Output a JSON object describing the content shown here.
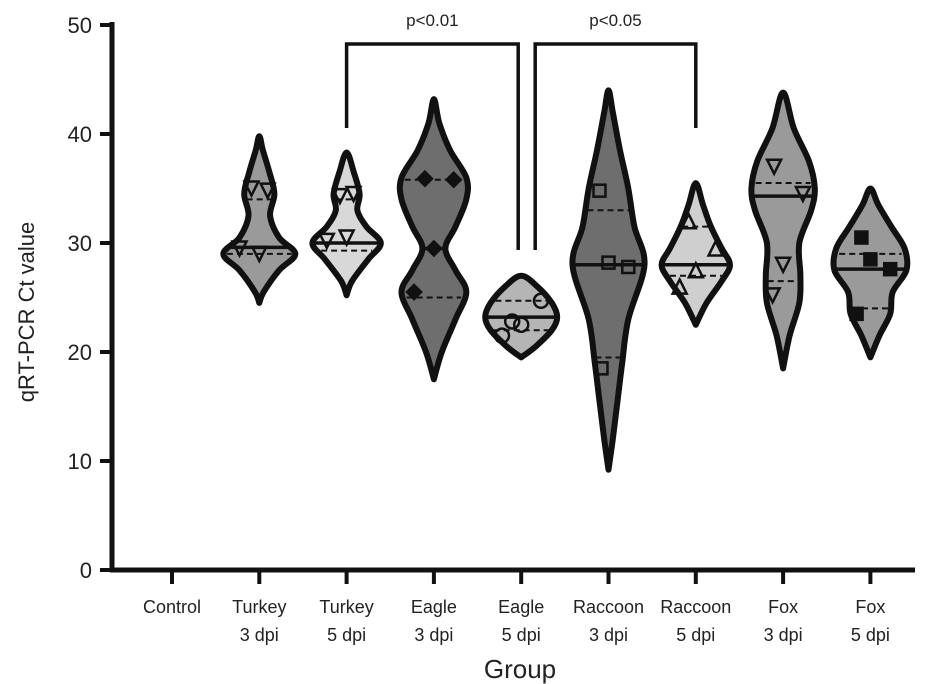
{
  "chart_data": {
    "type": "violin",
    "xlabel": "Group",
    "ylabel": "qRT-PCR Ct value",
    "ylim": [
      0,
      50
    ],
    "yticks": [
      0,
      10,
      20,
      30,
      40,
      50
    ],
    "categories": [
      {
        "line1": "Control",
        "line2": ""
      },
      {
        "line1": "Turkey",
        "line2": "3 dpi"
      },
      {
        "line1": "Turkey",
        "line2": "5 dpi"
      },
      {
        "line1": "Eagle",
        "line2": "3 dpi"
      },
      {
        "line1": "Eagle",
        "line2": "5 dpi"
      },
      {
        "line1": "Raccoon",
        "line2": "3 dpi"
      },
      {
        "line1": "Raccoon",
        "line2": "5 dpi"
      },
      {
        "line1": "Fox",
        "line2": "3 dpi"
      },
      {
        "line1": "Fox",
        "line2": "5 dpi"
      }
    ],
    "groups": [
      {
        "category_index": 0,
        "fill": null,
        "points": [],
        "median": null,
        "q1": null,
        "q3": null,
        "marker": null,
        "profile": []
      },
      {
        "category_index": 1,
        "fill": "#9a9a9a",
        "marker": "triangle-down",
        "median": 29.6,
        "q1": 29.0,
        "q3": 34.0,
        "points": [
          29.5,
          29.0,
          34.8,
          35.0
        ],
        "profile": [
          [
            24.5,
            0.0
          ],
          [
            25.5,
            0.12
          ],
          [
            27.5,
            0.55
          ],
          [
            29.0,
            1.0
          ],
          [
            30.5,
            0.55
          ],
          [
            32.5,
            0.3
          ],
          [
            34.5,
            0.42
          ],
          [
            36.5,
            0.28
          ],
          [
            38.5,
            0.1
          ],
          [
            39.8,
            0.0
          ]
        ]
      },
      {
        "category_index": 2,
        "fill": "#d8d8d8",
        "marker": "triangle-down",
        "median": 30.0,
        "q1": 29.3,
        "q3": 34.0,
        "points": [
          30.2,
          30.5,
          34.5,
          34.3
        ],
        "profile": [
          [
            25.2,
            0.0
          ],
          [
            26.5,
            0.15
          ],
          [
            28.5,
            0.6
          ],
          [
            30.0,
            0.95
          ],
          [
            31.5,
            0.55
          ],
          [
            33.0,
            0.3
          ],
          [
            34.5,
            0.36
          ],
          [
            36.5,
            0.2
          ],
          [
            38.3,
            0.0
          ]
        ]
      },
      {
        "category_index": 3,
        "fill": "#6e6e6e",
        "marker": "diamond",
        "median": 29.5,
        "q1": 25.0,
        "q3": 35.8,
        "points": [
          25.5,
          29.5,
          35.8,
          35.9
        ],
        "profile": [
          [
            17.5,
            0.0
          ],
          [
            20.0,
            0.22
          ],
          [
            23.0,
            0.6
          ],
          [
            25.5,
            0.9
          ],
          [
            27.5,
            0.6
          ],
          [
            29.5,
            0.32
          ],
          [
            31.5,
            0.6
          ],
          [
            34.0,
            0.9
          ],
          [
            36.0,
            0.9
          ],
          [
            38.5,
            0.45
          ],
          [
            41.0,
            0.15
          ],
          [
            43.2,
            0.0
          ]
        ]
      },
      {
        "category_index": 4,
        "fill": "#b5b5b5",
        "marker": "circle",
        "median": 23.2,
        "q1": 22.0,
        "q3": 24.7,
        "points": [
          21.5,
          22.5,
          24.7,
          22.8
        ],
        "profile": [
          [
            19.5,
            0.0
          ],
          [
            20.5,
            0.4
          ],
          [
            22.0,
            0.85
          ],
          [
            23.2,
            1.0
          ],
          [
            24.5,
            0.85
          ],
          [
            26.0,
            0.45
          ],
          [
            27.0,
            0.0
          ]
        ]
      },
      {
        "category_index": 5,
        "fill": "#6e6e6e",
        "marker": "square",
        "median": 28.0,
        "q1": 19.5,
        "q3": 33.0,
        "points": [
          18.5,
          28.2,
          27.8,
          34.8
        ],
        "profile": [
          [
            9.2,
            0.0
          ],
          [
            12.0,
            0.12
          ],
          [
            15.5,
            0.25
          ],
          [
            19.0,
            0.38
          ],
          [
            23.0,
            0.55
          ],
          [
            28.0,
            1.0
          ],
          [
            31.5,
            0.72
          ],
          [
            35.0,
            0.55
          ],
          [
            38.5,
            0.32
          ],
          [
            42.0,
            0.12
          ],
          [
            44.0,
            0.0
          ]
        ]
      },
      {
        "category_index": 6,
        "fill": "#cfcfcf",
        "marker": "triangle-up",
        "median": 28.0,
        "q1": 27.0,
        "q3": 31.5,
        "points": [
          26.0,
          27.5,
          29.5,
          32.0
        ],
        "profile": [
          [
            22.5,
            0.0
          ],
          [
            24.5,
            0.3
          ],
          [
            26.5,
            0.72
          ],
          [
            28.0,
            0.95
          ],
          [
            29.5,
            0.72
          ],
          [
            31.5,
            0.42
          ],
          [
            33.5,
            0.2
          ],
          [
            35.5,
            0.0
          ]
        ]
      },
      {
        "category_index": 7,
        "fill": "#9a9a9a",
        "marker": "triangle-down",
        "median": 34.3,
        "q1": 26.5,
        "q3": 35.5,
        "points": [
          25.2,
          28.0,
          34.5,
          37.0
        ],
        "profile": [
          [
            18.5,
            0.0
          ],
          [
            21.5,
            0.18
          ],
          [
            24.5,
            0.45
          ],
          [
            27.0,
            0.48
          ],
          [
            30.0,
            0.45
          ],
          [
            33.0,
            0.78
          ],
          [
            35.0,
            0.88
          ],
          [
            37.5,
            0.72
          ],
          [
            40.5,
            0.3
          ],
          [
            43.8,
            0.0
          ]
        ]
      },
      {
        "category_index": 8,
        "fill": "#9a9a9a",
        "marker": "square-filled",
        "median": 27.6,
        "q1": 24.0,
        "q3": 29.0,
        "points": [
          23.5,
          28.5,
          27.6,
          30.5
        ],
        "profile": [
          [
            19.5,
            0.0
          ],
          [
            21.5,
            0.25
          ],
          [
            23.5,
            0.55
          ],
          [
            25.5,
            0.62
          ],
          [
            27.5,
            1.0
          ],
          [
            29.5,
            0.95
          ],
          [
            31.5,
            0.58
          ],
          [
            33.5,
            0.22
          ],
          [
            35.0,
            0.0
          ]
        ]
      }
    ],
    "significance": [
      {
        "from_category": 2,
        "to_category": 4,
        "label": "p<0.01"
      },
      {
        "from_category": 4,
        "to_category": 6,
        "label": "p<0.05"
      }
    ]
  }
}
